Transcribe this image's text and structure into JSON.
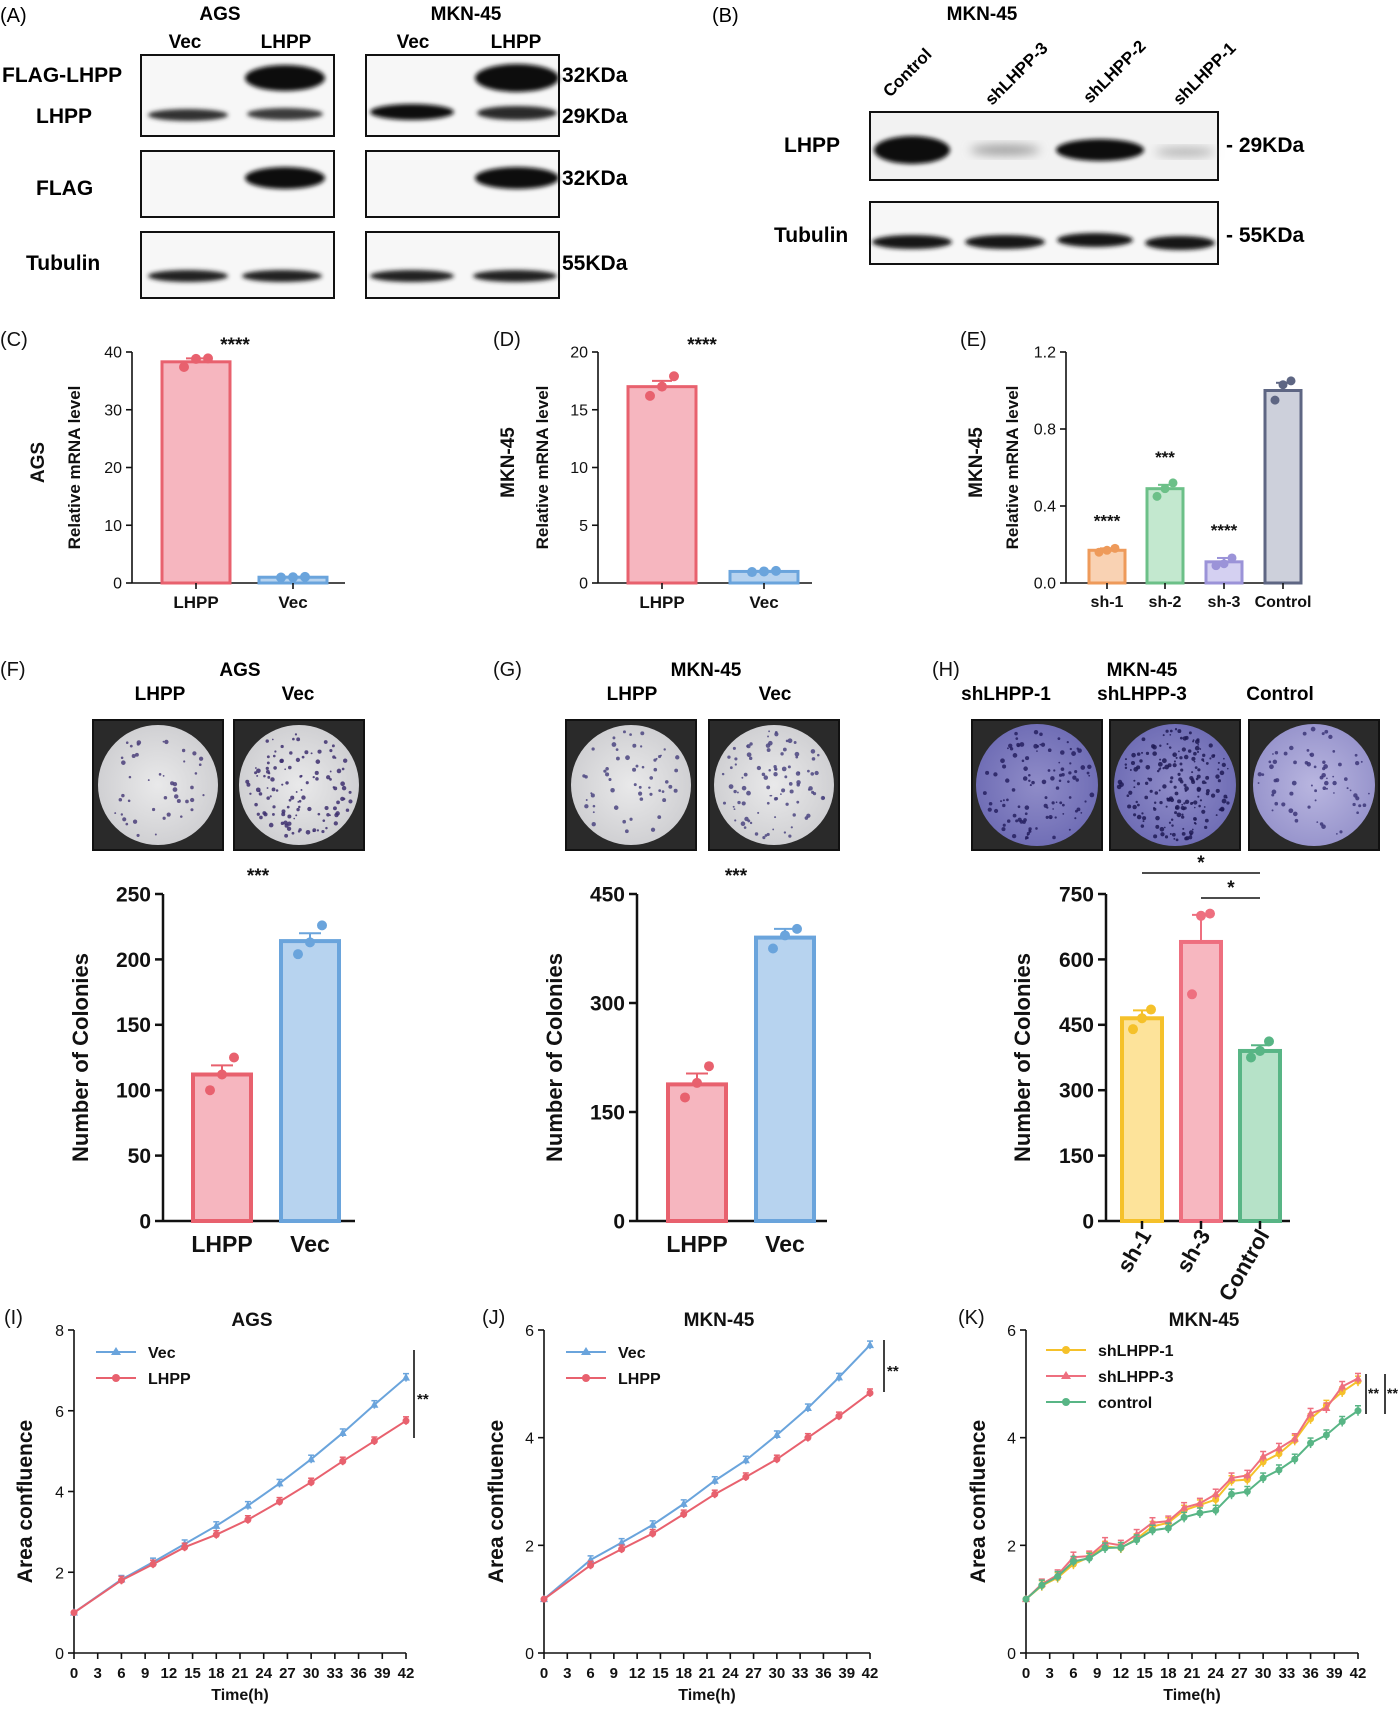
{
  "colors": {
    "red": "#e8616e",
    "red_fill": "#f6b6bf",
    "blue": "#6aa4dc",
    "blue_fill": "#b7d3ef",
    "orange": "#ee9a5a",
    "orange_fill": "#f9d2b3",
    "green": "#6cc088",
    "green_fill": "#c3e8cf",
    "purple": "#9b93d8",
    "purple_fill": "#d4d0f1",
    "slate": "#5e6683",
    "slate_fill": "#cdd0db",
    "yellow": "#f5c12a",
    "yellow_fill": "#fde39a",
    "rose": "#ee6f7f",
    "rose_fill": "#f7b7c0",
    "mint": "#58b585",
    "mint_fill": "#b6e2c8"
  },
  "panel_a": {
    "letter": "(A)",
    "blots": [
      {
        "cell_line": "AGS",
        "lanes": [
          "Vec",
          "LHPP"
        ]
      },
      {
        "cell_line": "MKN-45",
        "lanes": [
          "Vec",
          "LHPP"
        ]
      }
    ],
    "row_labels": [
      "FLAG-LHPP",
      "LHPP",
      "FLAG",
      "Tubulin"
    ],
    "sizes": [
      "32KDa",
      "29KDa",
      "32KDa",
      "55KDa"
    ]
  },
  "panel_b": {
    "letter": "(B)",
    "cell_line": "MKN-45",
    "lanes": [
      "Control",
      "shLHPP-3",
      "shLHPP-2",
      "shLHPP-1"
    ],
    "row_labels": [
      "LHPP",
      "Tubulin"
    ],
    "sizes": [
      "- 29KDa",
      "- 55KDa"
    ]
  },
  "panel_f_photos": {
    "cell_line": "AGS",
    "labels": [
      "LHPP",
      "Vec"
    ]
  },
  "panel_g_photos": {
    "cell_line": "MKN-45",
    "labels": [
      "LHPP",
      "Vec"
    ]
  },
  "panel_h_photos": {
    "cell_line": "MKN-45",
    "labels": [
      "shLHPP-1",
      "shLHPP-3",
      "Control"
    ]
  },
  "chart_data": [
    {
      "id": "C",
      "letter": "(C)",
      "type": "bar",
      "categories": [
        "LHPP",
        "Vec"
      ],
      "values": [
        38.3,
        1.0
      ],
      "errors": [
        0.6,
        0.05
      ],
      "points": [
        [
          37.4,
          38.8,
          38.9
        ],
        [
          0.95,
          1.0,
          1.05
        ]
      ],
      "ylabel": "Relative mRNA level",
      "side_label": "AGS",
      "ylim": [
        0,
        40
      ],
      "yticks": [
        "0",
        "10",
        "20",
        "30",
        "40"
      ],
      "sig": [
        "****"
      ],
      "grid": false
    },
    {
      "id": "D",
      "letter": "(D)",
      "type": "bar",
      "categories": [
        "LHPP",
        "Vec"
      ],
      "values": [
        17.0,
        1.0
      ],
      "errors": [
        0.5,
        0.05
      ],
      "points": [
        [
          16.2,
          17.0,
          17.9
        ],
        [
          0.95,
          1.0,
          1.05
        ]
      ],
      "ylabel": "Relative mRNA level",
      "side_label": "MKN-45",
      "ylim": [
        0,
        20
      ],
      "yticks": [
        "0",
        "5",
        "10",
        "15",
        "20"
      ],
      "sig": [
        "****"
      ],
      "grid": false
    },
    {
      "id": "E",
      "letter": "(E)",
      "type": "bar",
      "categories": [
        "sh-1",
        "sh-2",
        "sh-3",
        "Control"
      ],
      "values": [
        0.17,
        0.49,
        0.11,
        1.0
      ],
      "errors": [
        0.01,
        0.02,
        0.02,
        0.04
      ],
      "points": [
        [
          0.16,
          0.17,
          0.18
        ],
        [
          0.45,
          0.49,
          0.52
        ],
        [
          0.09,
          0.1,
          0.13
        ],
        [
          0.95,
          1.03,
          1.05
        ]
      ],
      "ylabel": "Relative mRNA level",
      "side_label": "MKN-45",
      "ylim": [
        0,
        1.2
      ],
      "yticks": [
        "0.0",
        "0.4",
        "0.8",
        "1.2"
      ],
      "sig": [
        "****",
        "***",
        "****",
        ""
      ],
      "grid": false
    },
    {
      "id": "F",
      "letter": "(F)",
      "type": "bar",
      "categories": [
        "LHPP",
        "Vec"
      ],
      "values": [
        112,
        214
      ],
      "errors": [
        7,
        6
      ],
      "points": [
        [
          100,
          112,
          125
        ],
        [
          204,
          213,
          226
        ]
      ],
      "ylabel": "Number of Colonies",
      "ylim": [
        0,
        250
      ],
      "yticks": [
        "0",
        "50",
        "100",
        "150",
        "200",
        "250"
      ],
      "sig": [
        "***"
      ],
      "grid": false
    },
    {
      "id": "G",
      "letter": "(G)",
      "type": "bar",
      "categories": [
        "LHPP",
        "Vec"
      ],
      "values": [
        188,
        390
      ],
      "errors": [
        15,
        12
      ],
      "points": [
        [
          170,
          190,
          213
        ],
        [
          375,
          393,
          402
        ]
      ],
      "ylabel": "Number of Colonies",
      "ylim": [
        0,
        450
      ],
      "yticks": [
        "0",
        "150",
        "300",
        "450"
      ],
      "sig": [
        "***"
      ],
      "grid": false
    },
    {
      "id": "H",
      "letter": "(H)",
      "type": "bar",
      "categories": [
        "sh-1",
        "sh-3",
        "Control"
      ],
      "values": [
        465,
        640,
        390
      ],
      "errors": [
        18,
        62,
        13
      ],
      "points": [
        [
          440,
          465,
          485
        ],
        [
          520,
          700,
          705
        ],
        [
          375,
          390,
          412
        ]
      ],
      "ylabel": "Number of Colonies",
      "ylim": [
        0,
        750
      ],
      "yticks": [
        "0",
        "150",
        "300",
        "450",
        "600",
        "750"
      ],
      "sig": [
        "*",
        "*"
      ],
      "grid": false
    },
    {
      "id": "I",
      "letter": "(I)",
      "type": "line",
      "title": "AGS",
      "x": [
        0,
        6,
        10,
        14,
        18,
        22,
        26,
        30,
        34,
        38,
        42
      ],
      "series": [
        {
          "name": "Vec",
          "values": [
            1.0,
            1.82,
            2.25,
            2.7,
            3.15,
            3.65,
            4.2,
            4.8,
            5.45,
            6.15,
            6.82
          ]
        },
        {
          "name": "LHPP",
          "values": [
            1.0,
            1.8,
            2.2,
            2.62,
            2.93,
            3.3,
            3.75,
            4.23,
            4.75,
            5.25,
            5.75
          ]
        }
      ],
      "xlabel": "Time(h)",
      "ylabel": "Area confluence",
      "xlim": [
        0,
        42
      ],
      "ylim": [
        0,
        8
      ],
      "xticks": [
        "0",
        "3",
        "6",
        "9",
        "12",
        "15",
        "18",
        "21",
        "24",
        "27",
        "30",
        "33",
        "36",
        "39",
        "42"
      ],
      "yticks": [
        "0",
        "2",
        "4",
        "6",
        "8"
      ],
      "sig": "**",
      "legend": "top-left",
      "grid": false
    },
    {
      "id": "J",
      "letter": "(J)",
      "type": "line",
      "title": "MKN-45",
      "x": [
        0,
        6,
        10,
        14,
        18,
        22,
        26,
        30,
        34,
        38,
        42
      ],
      "series": [
        {
          "name": "Vec",
          "values": [
            1.0,
            1.73,
            2.05,
            2.38,
            2.77,
            3.2,
            3.58,
            4.05,
            4.55,
            5.12,
            5.72
          ]
        },
        {
          "name": "LHPP",
          "values": [
            1.0,
            1.63,
            1.93,
            2.22,
            2.58,
            2.95,
            3.27,
            3.6,
            4.0,
            4.4,
            4.83
          ]
        }
      ],
      "xlabel": "Time(h)",
      "ylabel": "Area confluence",
      "xlim": [
        0,
        42
      ],
      "ylim": [
        0,
        6
      ],
      "xticks": [
        "0",
        "3",
        "6",
        "9",
        "12",
        "15",
        "18",
        "21",
        "24",
        "27",
        "30",
        "33",
        "36",
        "39",
        "42"
      ],
      "yticks": [
        "0",
        "2",
        "4",
        "6"
      ],
      "sig": "**",
      "legend": "top-left",
      "grid": false
    },
    {
      "id": "K",
      "letter": "(K)",
      "type": "line",
      "title": "MKN-45",
      "x": [
        0,
        2,
        4,
        6,
        8,
        10,
        12,
        14,
        16,
        18,
        20,
        22,
        24,
        26,
        28,
        30,
        32,
        34,
        36,
        38,
        40,
        42
      ],
      "series": [
        {
          "name": "shLHPP-1",
          "values": [
            1.0,
            1.25,
            1.4,
            1.65,
            1.78,
            1.98,
            1.95,
            2.12,
            2.35,
            2.42,
            2.65,
            2.75,
            2.85,
            3.2,
            3.22,
            3.55,
            3.7,
            3.95,
            4.35,
            4.6,
            4.85,
            5.05
          ]
        },
        {
          "name": "shLHPP-3",
          "values": [
            1.0,
            1.28,
            1.45,
            1.78,
            1.8,
            2.05,
            2.0,
            2.2,
            2.42,
            2.45,
            2.7,
            2.78,
            2.95,
            3.25,
            3.3,
            3.65,
            3.8,
            3.98,
            4.45,
            4.55,
            4.95,
            5.1
          ]
        },
        {
          "name": "control",
          "values": [
            1.0,
            1.26,
            1.42,
            1.7,
            1.76,
            1.95,
            1.96,
            2.1,
            2.28,
            2.32,
            2.52,
            2.6,
            2.65,
            2.95,
            3.0,
            3.25,
            3.4,
            3.6,
            3.9,
            4.05,
            4.3,
            4.5
          ]
        }
      ],
      "xlabel": "Time(h)",
      "ylabel": "Area confluence",
      "xlim": [
        0,
        42
      ],
      "ylim": [
        0,
        6
      ],
      "xticks": [
        "0",
        "3",
        "6",
        "9",
        "12",
        "15",
        "18",
        "21",
        "24",
        "27",
        "30",
        "33",
        "36",
        "39",
        "42"
      ],
      "yticks": [
        "0",
        "2",
        "4",
        "6"
      ],
      "sig": "**",
      "sig2": "**",
      "legend": "top-left",
      "grid": false
    }
  ]
}
